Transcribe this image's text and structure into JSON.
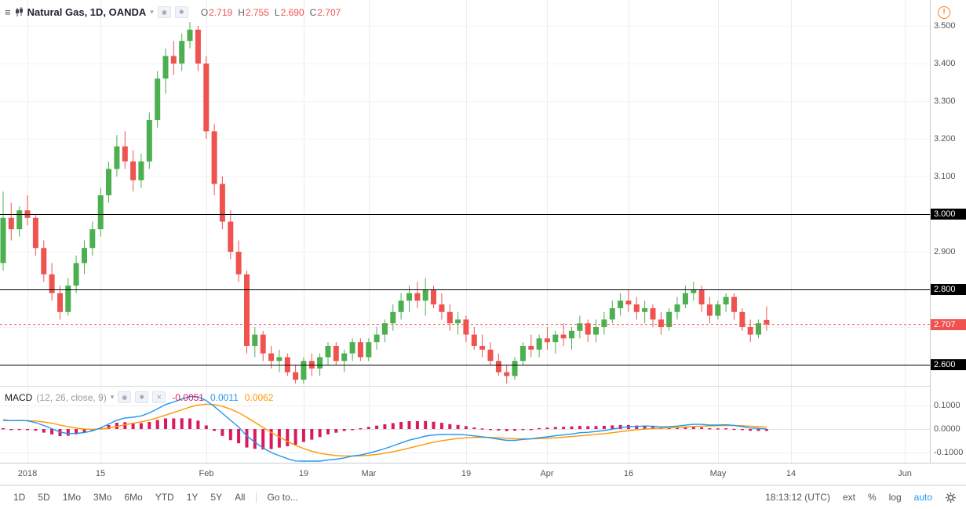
{
  "header": {
    "symbol_title": "Natural Gas, 1D, OANDA",
    "ohlc": {
      "o_label": "O",
      "o_value": "2.719",
      "h_label": "H",
      "h_value": "2.755",
      "l_label": "L",
      "l_value": "2.690",
      "c_label": "C",
      "c_value": "2.707"
    }
  },
  "indicator": {
    "name": "MACD",
    "params": "(12, 26, close, 9)",
    "histogram_value": "-0.0051",
    "macd_value": "0.0011",
    "signal_value": "0.0062"
  },
  "axis": {
    "price_ticks": [
      {
        "label": "3.500",
        "value": 3.5
      },
      {
        "label": "3.400",
        "value": 3.4
      },
      {
        "label": "3.300",
        "value": 3.3
      },
      {
        "label": "3.200",
        "value": 3.2
      },
      {
        "label": "3.100",
        "value": 3.1
      },
      {
        "label": "2.900",
        "value": 2.9
      }
    ],
    "level_badges": [
      {
        "label": "3.000",
        "value": 3.0
      },
      {
        "label": "2.800",
        "value": 2.8
      },
      {
        "label": "2.600",
        "value": 2.6
      }
    ],
    "last_price_badge": {
      "label": "2.707",
      "value": 2.707
    },
    "macd_ticks": [
      {
        "label": "0.1000",
        "value": 0.1
      },
      {
        "label": "0.0000",
        "value": 0.0
      },
      {
        "label": "-0.1000",
        "value": -0.1
      }
    ]
  },
  "toolbar": {
    "ranges": [
      "1D",
      "5D",
      "1Mo",
      "3Mo",
      "6Mo",
      "YTD",
      "1Y",
      "5Y",
      "All"
    ],
    "goto_label": "Go to...",
    "clock": "18:13:12 (UTC)",
    "scale_modes": [
      "ext",
      "%",
      "log"
    ],
    "auto_label": "auto"
  },
  "colors": {
    "up": "#4caf50",
    "down": "#ef5350",
    "macd_line": "#2196f3",
    "signal_line": "#ff9800",
    "histogram": "#d81b60",
    "level_line": "#000000",
    "accent": "#2196f3",
    "warning": "#f0821e"
  },
  "chart_data": {
    "type": "candlestick",
    "title": "Natural Gas, 1D, OANDA",
    "symbol": "Natural Gas",
    "interval": "1D",
    "exchange": "OANDA",
    "price_axis_range": [
      2.544,
      3.51
    ],
    "levels": [
      3.0,
      2.8,
      2.6
    ],
    "last_price": 2.707,
    "ohlc_last": {
      "open": 2.719,
      "high": 2.755,
      "low": 2.69,
      "close": 2.707
    },
    "time_ticks": [
      {
        "label": "2018",
        "index": 3
      },
      {
        "label": "15",
        "index": 12
      },
      {
        "label": "Feb",
        "index": 25
      },
      {
        "label": "19",
        "index": 37
      },
      {
        "label": "Mar",
        "index": 45
      },
      {
        "label": "19",
        "index": 57
      },
      {
        "label": "Apr",
        "index": 67
      },
      {
        "label": "16",
        "index": 77
      },
      {
        "label": "May",
        "index": 88
      },
      {
        "label": "14",
        "index": 97
      },
      {
        "label": "Jun",
        "index": 111
      }
    ],
    "indicator": {
      "type": "MACD",
      "fast": 12,
      "slow": 26,
      "source": "close",
      "signal": 9,
      "axis_range": [
        -0.137,
        0.177
      ]
    },
    "candles": [
      [
        2.87,
        3.06,
        2.85,
        2.99
      ],
      [
        2.99,
        3.03,
        2.93,
        2.96
      ],
      [
        2.96,
        3.02,
        2.94,
        3.01
      ],
      [
        3.01,
        3.05,
        2.97,
        2.99
      ],
      [
        2.99,
        3.0,
        2.89,
        2.91
      ],
      [
        2.91,
        2.93,
        2.82,
        2.84
      ],
      [
        2.84,
        2.87,
        2.77,
        2.79
      ],
      [
        2.79,
        2.81,
        2.72,
        2.74
      ],
      [
        2.74,
        2.83,
        2.73,
        2.81
      ],
      [
        2.81,
        2.89,
        2.79,
        2.87
      ],
      [
        2.87,
        2.93,
        2.84,
        2.91
      ],
      [
        2.91,
        2.98,
        2.89,
        2.96
      ],
      [
        2.96,
        3.07,
        2.94,
        3.05
      ],
      [
        3.05,
        3.14,
        3.03,
        3.12
      ],
      [
        3.12,
        3.21,
        3.1,
        3.18
      ],
      [
        3.18,
        3.22,
        3.12,
        3.14
      ],
      [
        3.14,
        3.17,
        3.06,
        3.09
      ],
      [
        3.09,
        3.16,
        3.07,
        3.14
      ],
      [
        3.14,
        3.27,
        3.12,
        3.25
      ],
      [
        3.25,
        3.38,
        3.23,
        3.36
      ],
      [
        3.36,
        3.44,
        3.32,
        3.42
      ],
      [
        3.42,
        3.46,
        3.37,
        3.4
      ],
      [
        3.4,
        3.48,
        3.38,
        3.46
      ],
      [
        3.46,
        3.51,
        3.44,
        3.49
      ],
      [
        3.49,
        3.5,
        3.38,
        3.4
      ],
      [
        3.4,
        3.42,
        3.2,
        3.22
      ],
      [
        3.22,
        3.24,
        3.05,
        3.08
      ],
      [
        3.08,
        3.1,
        2.96,
        2.98
      ],
      [
        2.98,
        3.01,
        2.88,
        2.9
      ],
      [
        2.9,
        2.93,
        2.82,
        2.84
      ],
      [
        2.84,
        2.85,
        2.63,
        2.65
      ],
      [
        2.65,
        2.7,
        2.62,
        2.68
      ],
      [
        2.68,
        2.69,
        2.61,
        2.63
      ],
      [
        2.63,
        2.65,
        2.59,
        2.61
      ],
      [
        2.61,
        2.64,
        2.58,
        2.62
      ],
      [
        2.62,
        2.63,
        2.57,
        2.58
      ],
      [
        2.58,
        2.6,
        2.55,
        2.56
      ],
      [
        2.56,
        2.62,
        2.55,
        2.61
      ],
      [
        2.61,
        2.63,
        2.57,
        2.59
      ],
      [
        2.59,
        2.63,
        2.57,
        2.62
      ],
      [
        2.62,
        2.66,
        2.6,
        2.65
      ],
      [
        2.65,
        2.66,
        2.6,
        2.61
      ],
      [
        2.61,
        2.64,
        2.58,
        2.63
      ],
      [
        2.63,
        2.67,
        2.61,
        2.66
      ],
      [
        2.66,
        2.67,
        2.61,
        2.62
      ],
      [
        2.62,
        2.67,
        2.61,
        2.66
      ],
      [
        2.66,
        2.7,
        2.64,
        2.68
      ],
      [
        2.68,
        2.72,
        2.66,
        2.71
      ],
      [
        2.71,
        2.76,
        2.69,
        2.74
      ],
      [
        2.74,
        2.79,
        2.72,
        2.77
      ],
      [
        2.77,
        2.81,
        2.74,
        2.79
      ],
      [
        2.79,
        2.82,
        2.75,
        2.77
      ],
      [
        2.77,
        2.83,
        2.73,
        2.8
      ],
      [
        2.8,
        2.81,
        2.75,
        2.76
      ],
      [
        2.76,
        2.79,
        2.72,
        2.74
      ],
      [
        2.74,
        2.76,
        2.69,
        2.71
      ],
      [
        2.71,
        2.74,
        2.68,
        2.72
      ],
      [
        2.72,
        2.73,
        2.66,
        2.68
      ],
      [
        2.68,
        2.7,
        2.64,
        2.65
      ],
      [
        2.65,
        2.68,
        2.62,
        2.64
      ],
      [
        2.64,
        2.66,
        2.6,
        2.61
      ],
      [
        2.61,
        2.63,
        2.57,
        2.58
      ],
      [
        2.58,
        2.6,
        2.55,
        2.57
      ],
      [
        2.57,
        2.62,
        2.56,
        2.61
      ],
      [
        2.61,
        2.66,
        2.6,
        2.65
      ],
      [
        2.65,
        2.68,
        2.62,
        2.64
      ],
      [
        2.64,
        2.68,
        2.62,
        2.67
      ],
      [
        2.67,
        2.7,
        2.64,
        2.66
      ],
      [
        2.66,
        2.69,
        2.63,
        2.68
      ],
      [
        2.68,
        2.71,
        2.65,
        2.67
      ],
      [
        2.67,
        2.7,
        2.64,
        2.69
      ],
      [
        2.69,
        2.73,
        2.67,
        2.71
      ],
      [
        2.71,
        2.72,
        2.66,
        2.68
      ],
      [
        2.68,
        2.72,
        2.66,
        2.7
      ],
      [
        2.7,
        2.74,
        2.68,
        2.72
      ],
      [
        2.72,
        2.77,
        2.71,
        2.75
      ],
      [
        2.75,
        2.79,
        2.73,
        2.77
      ],
      [
        2.77,
        2.8,
        2.74,
        2.76
      ],
      [
        2.76,
        2.78,
        2.72,
        2.74
      ],
      [
        2.74,
        2.77,
        2.71,
        2.75
      ],
      [
        2.75,
        2.76,
        2.7,
        2.72
      ],
      [
        2.72,
        2.74,
        2.68,
        2.7
      ],
      [
        2.7,
        2.75,
        2.69,
        2.74
      ],
      [
        2.74,
        2.78,
        2.72,
        2.76
      ],
      [
        2.76,
        2.81,
        2.75,
        2.79
      ],
      [
        2.79,
        2.82,
        2.77,
        2.8
      ],
      [
        2.8,
        2.81,
        2.74,
        2.76
      ],
      [
        2.76,
        2.78,
        2.71,
        2.73
      ],
      [
        2.73,
        2.77,
        2.72,
        2.76
      ],
      [
        2.76,
        2.79,
        2.74,
        2.78
      ],
      [
        2.78,
        2.79,
        2.72,
        2.74
      ],
      [
        2.74,
        2.75,
        2.69,
        2.7
      ],
      [
        2.7,
        2.72,
        2.66,
        2.68
      ],
      [
        2.68,
        2.72,
        2.67,
        2.71
      ],
      [
        2.719,
        2.755,
        2.69,
        2.707
      ]
    ]
  }
}
